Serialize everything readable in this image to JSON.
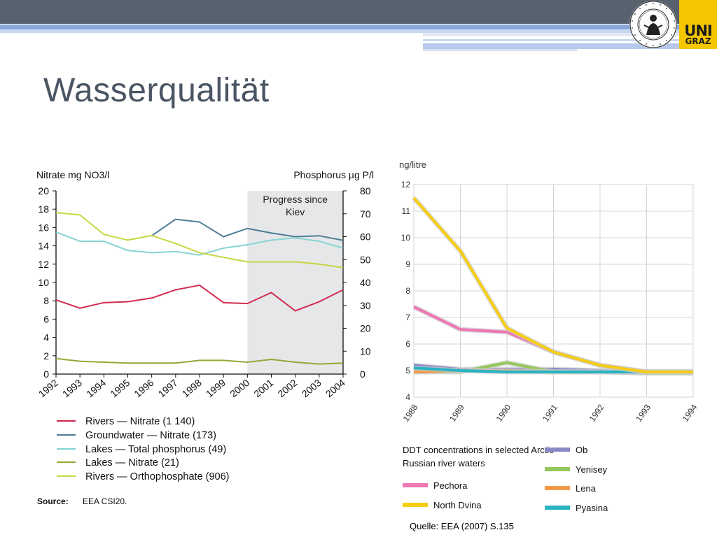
{
  "slide": {
    "title": "Wasserqualität",
    "source": "Quelle: EEA (2007) S.135"
  },
  "logo": {
    "top": "UNI",
    "bottom": "GRAZ",
    "seal_text": "UNIVERSITAS GRAECENSIS"
  },
  "colors": {
    "top_bar": "#58616e",
    "accent_blue": "#8aa6d8",
    "logo_yellow": "#f6c700",
    "title": "#4a5563"
  },
  "chart_data": [
    {
      "type": "line",
      "ylabel_left": "Nitrate mg NO3/l",
      "ylabel_right": "Phosphorus µg P/l",
      "x": [
        "1992",
        "1993",
        "1994",
        "1995",
        "1996",
        "1997",
        "1998",
        "1999",
        "2000",
        "2001",
        "2002",
        "2003",
        "2004"
      ],
      "y_left_ticks": [
        "0",
        "2",
        "4",
        "6",
        "8",
        "10",
        "12",
        "14",
        "16",
        "18",
        "20"
      ],
      "y_right_ticks": [
        "0",
        "10",
        "20",
        "30",
        "40",
        "50",
        "60",
        "70",
        "80"
      ],
      "ylim_left": [
        0,
        20
      ],
      "ylim_right": [
        0,
        80
      ],
      "annotation": {
        "text_line1": "Progress since",
        "text_line2": "Kiev",
        "x_start": "2000",
        "x_end": "2004"
      },
      "series": [
        {
          "name": "Rivers — Nitrate (1 140)",
          "axis": "left",
          "color": "#d22b50",
          "x": [
            "1992",
            "1993",
            "1994",
            "1995",
            "1996",
            "1997",
            "1998",
            "1999",
            "2000",
            "2001",
            "2002",
            "2003",
            "2004"
          ],
          "values": [
            8.1,
            7.2,
            7.8,
            7.9,
            8.3,
            9.2,
            9.7,
            7.8,
            7.7,
            8.9,
            6.9,
            7.9,
            9.2
          ]
        },
        {
          "name": "Groundwater — Nitrate (173)",
          "axis": "left",
          "color": "#4f7e95",
          "x": [
            "1996",
            "1997",
            "1998",
            "1999",
            "2000",
            "2001",
            "2002",
            "2003",
            "2004"
          ],
          "values": [
            15.1,
            16.9,
            16.6,
            15.0,
            15.9,
            15.4,
            15.0,
            15.1,
            14.6
          ]
        },
        {
          "name": "Lakes — Total phosphorus (49)",
          "axis": "right",
          "color": "#86d4d3",
          "x": [
            "1992",
            "1993",
            "1994",
            "1995",
            "1996",
            "1997",
            "1998",
            "1999",
            "2000",
            "2001",
            "2002",
            "2003",
            "2004"
          ],
          "values": [
            62,
            58,
            58,
            54,
            53,
            53.5,
            52,
            55,
            56.5,
            58.5,
            59.5,
            58,
            55
          ]
        },
        {
          "name": "Lakes — Nitrate (21)",
          "axis": "left",
          "color": "#9aa536",
          "x": [
            "1992",
            "1993",
            "1994",
            "1995",
            "1996",
            "1997",
            "1998",
            "1999",
            "2000",
            "2001",
            "2002",
            "2003",
            "2004"
          ],
          "values": [
            1.7,
            1.4,
            1.3,
            1.2,
            1.2,
            1.2,
            1.5,
            1.5,
            1.3,
            1.6,
            1.3,
            1.1,
            1.2
          ]
        },
        {
          "name": "Rivers — Orthophosphate (906)",
          "axis": "right",
          "color": "#c8d742",
          "x": [
            "1992",
            "1993",
            "1994",
            "1995",
            "1996",
            "1997",
            "1998",
            "1999",
            "2000",
            "2001",
            "2002",
            "2003",
            "2004"
          ],
          "values": [
            70.5,
            69.5,
            61,
            58.5,
            60.5,
            57,
            53,
            51,
            49,
            49,
            49,
            48,
            46.5
          ]
        }
      ],
      "source_label": "Source:",
      "source_value": "EEA CSI20."
    },
    {
      "type": "line",
      "ylabel": "ng/litre",
      "x": [
        "1988",
        "1989",
        "1990",
        "1991",
        "1992",
        "1993",
        "1994"
      ],
      "y_ticks": [
        "4",
        "5",
        "6",
        "7",
        "8",
        "9",
        "10",
        "11",
        "12"
      ],
      "ylim": [
        4,
        12
      ],
      "caption_line1": "DDT concentrations in selected Arctic",
      "caption_line2": "Russian river waters",
      "series": [
        {
          "name": "Ob",
          "color": "#8a86c8",
          "values": [
            5.2,
            5.05,
            5.05,
            5.05,
            5.0,
            4.95,
            4.95
          ]
        },
        {
          "name": "Yenisey",
          "color": "#95c75a",
          "values": [
            4.95,
            4.95,
            5.3,
            4.95,
            4.95,
            4.9,
            4.9
          ]
        },
        {
          "name": "Lena",
          "color": "#f29a45",
          "values": [
            4.95,
            5.0,
            5.0,
            4.95,
            4.95,
            4.95,
            4.95
          ]
        },
        {
          "name": "Pyasina",
          "color": "#27b3c2",
          "values": [
            5.1,
            5.0,
            4.95,
            4.95,
            4.95,
            4.95,
            4.95
          ]
        },
        {
          "name": "Pechora",
          "color": "#ee77b3",
          "values": [
            7.4,
            6.55,
            6.45,
            5.7,
            5.2,
            4.95,
            4.95
          ]
        },
        {
          "name": "North Dvina",
          "color": "#f6cd13",
          "values": [
            11.5,
            9.5,
            6.6,
            5.7,
            5.2,
            4.95,
            4.95
          ]
        }
      ],
      "legend_order": [
        "Pechora",
        "North Dvina",
        "Ob",
        "Yenisey",
        "Lena",
        "Pyasina"
      ]
    }
  ]
}
